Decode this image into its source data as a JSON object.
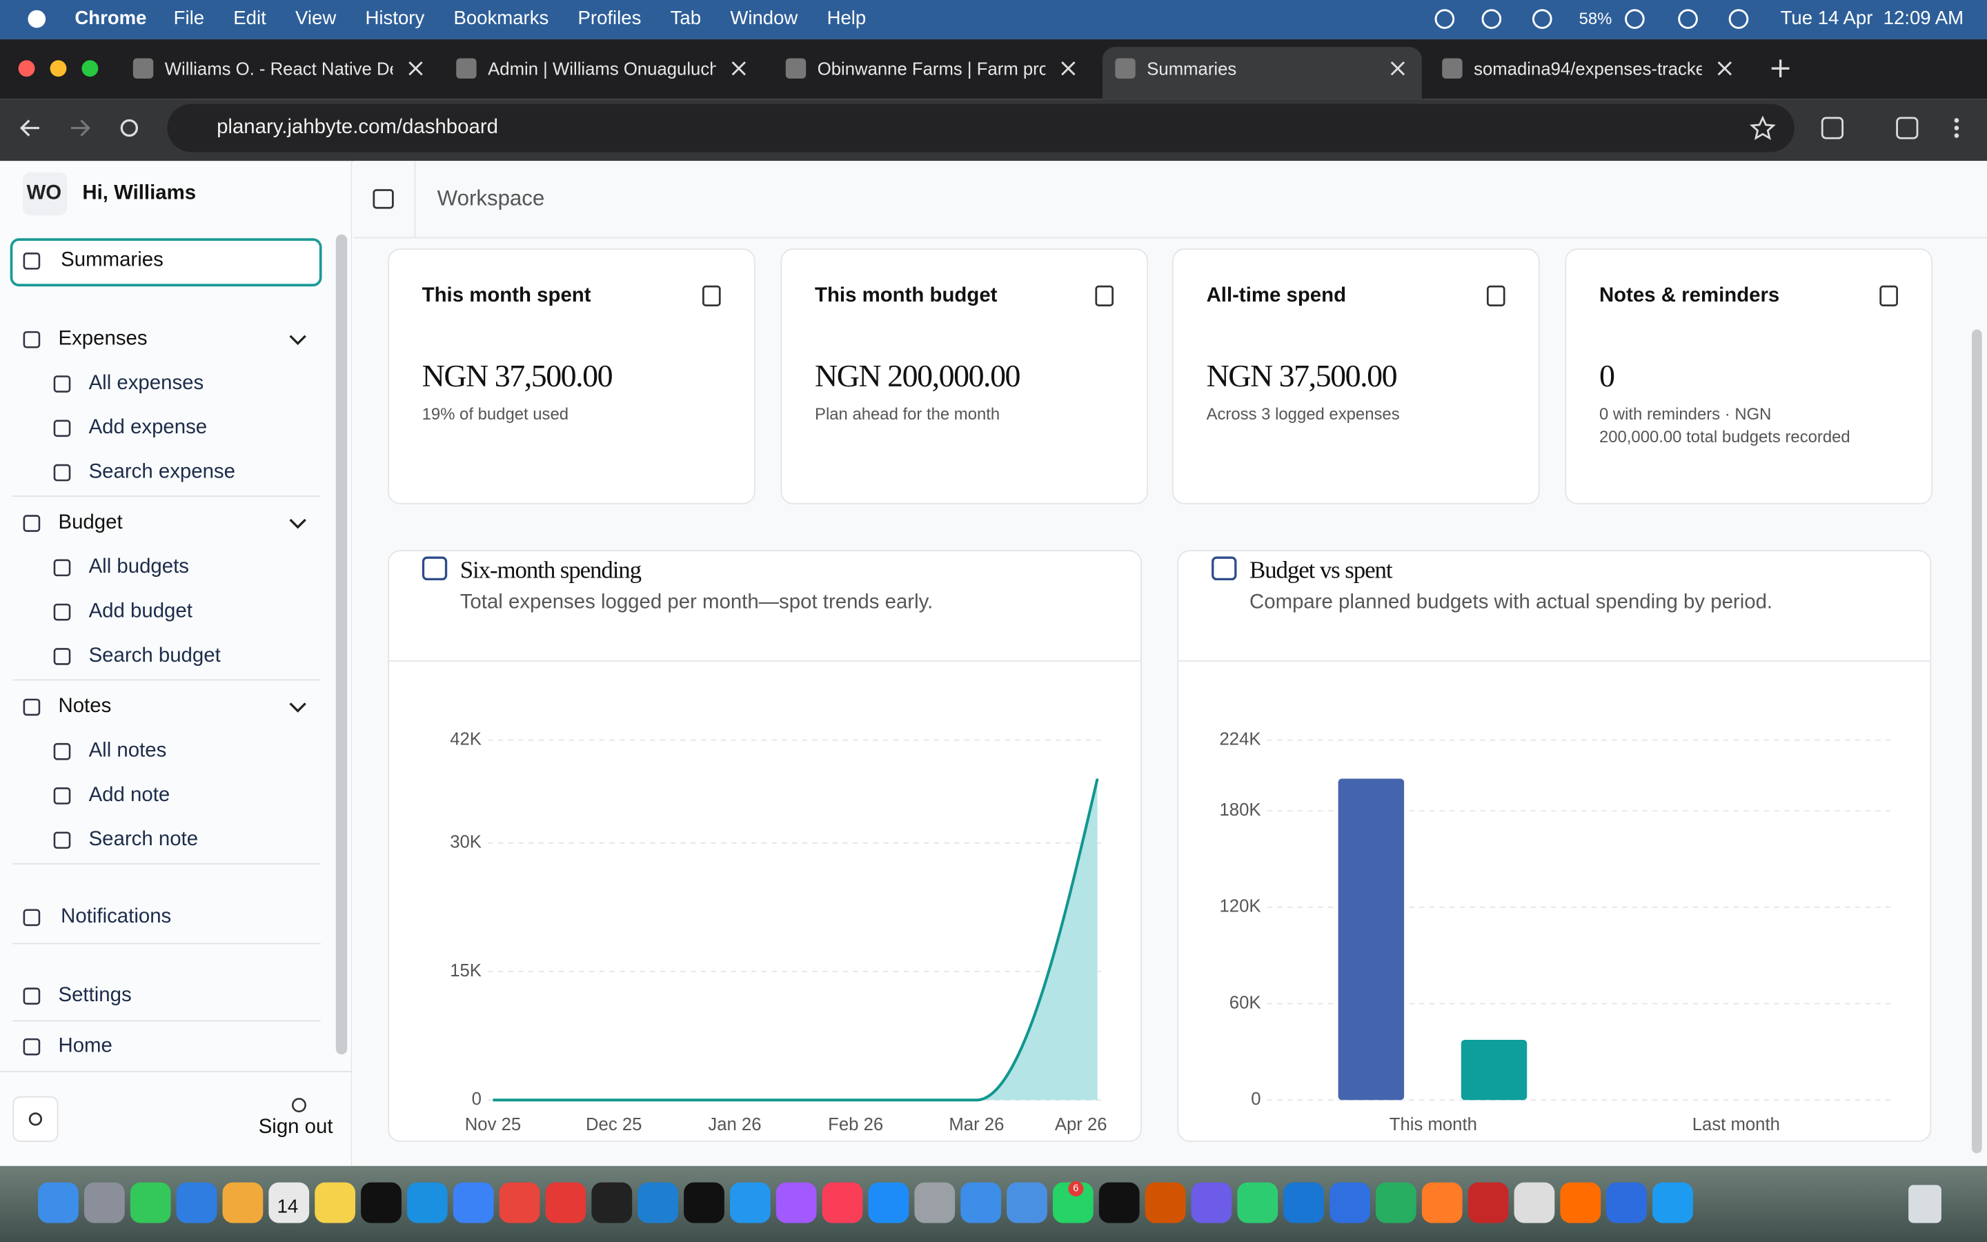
{
  "menubar": {
    "app": "Chrome",
    "menus": [
      "File",
      "Edit",
      "View",
      "History",
      "Bookmarks",
      "Profiles",
      "Tab",
      "Window",
      "Help"
    ],
    "battery": "58%",
    "datetime": "Tue 14 Apr  12:09 AM"
  },
  "tabs": {
    "items": [
      "Williams O. - React Native De",
      "Admin | Williams Onuaguluchi",
      "Obinwanne Farms | Farm prod",
      "Summaries",
      "somadina94/expenses-tracke"
    ],
    "active": 3
  },
  "address": "planary.jahbyte.com/dashboard",
  "sidebar": {
    "avatar": "WO",
    "greeting": "Hi, Williams",
    "active_item": "Summaries",
    "groups": [
      {
        "title": "Expenses",
        "items": [
          "All expenses",
          "Add expense",
          "Search expense"
        ]
      },
      {
        "title": "Budget",
        "items": [
          "All budgets",
          "Add budget",
          "Search budget"
        ]
      },
      {
        "title": "Notes",
        "items": [
          "All notes",
          "Add note",
          "Search note"
        ]
      }
    ],
    "notifications": "Notifications",
    "settings": "Settings",
    "home": "Home",
    "sign_out": "Sign out"
  },
  "header": {
    "title": "Workspace"
  },
  "cards": [
    {
      "title": "This month spent",
      "value": "NGN 37,500.00",
      "note": "19% of budget used"
    },
    {
      "title": "This month budget",
      "value": "NGN 200,000.00",
      "note": "Plan ahead for the month"
    },
    {
      "title": "All-time spend",
      "value": "NGN 37,500.00",
      "note": "Across 3 logged expenses"
    },
    {
      "title": "Notes & reminders",
      "value": "0",
      "note": "0 with reminders · NGN 200,000.00 total budgets recorded"
    }
  ],
  "chart_data": [
    {
      "type": "line",
      "title": "Six-month spending",
      "subtitle": "Total expenses logged per month—spot trends early.",
      "categories": [
        "Nov 25",
        "Dec 25",
        "Jan 26",
        "Feb 26",
        "Mar 26",
        "Apr 26"
      ],
      "values": [
        0,
        0,
        0,
        0,
        0,
        37500
      ],
      "color": "#11968f",
      "fill": "#b4e4e5",
      "ylim": [
        0,
        42000
      ],
      "yticks": [
        0,
        {
          "value": 15000,
          "label": "15K"
        },
        {
          "value": 30000,
          "label": "30K"
        },
        {
          "value": 42000,
          "label": "42K"
        }
      ],
      "grid": true
    },
    {
      "type": "bar",
      "title": "Budget vs spent",
      "subtitle": "Compare planned budgets with actual spending by period.",
      "categories": [
        "This month",
        "Last month"
      ],
      "series": [
        {
          "color": "#4464ad",
          "values": [
            200000,
            0
          ]
        },
        {
          "color": "#0e9f9a",
          "values": [
            37500,
            0
          ]
        }
      ],
      "ylim": [
        0,
        224000
      ],
      "yticks": [
        0,
        {
          "value": 60000,
          "label": "60K"
        },
        {
          "value": 120000,
          "label": "120K"
        },
        {
          "value": 180000,
          "label": "180K"
        },
        {
          "value": 224000,
          "label": "224K"
        }
      ],
      "grid": true
    }
  ],
  "dock": {
    "calendar_day": "14",
    "badge": "6"
  }
}
